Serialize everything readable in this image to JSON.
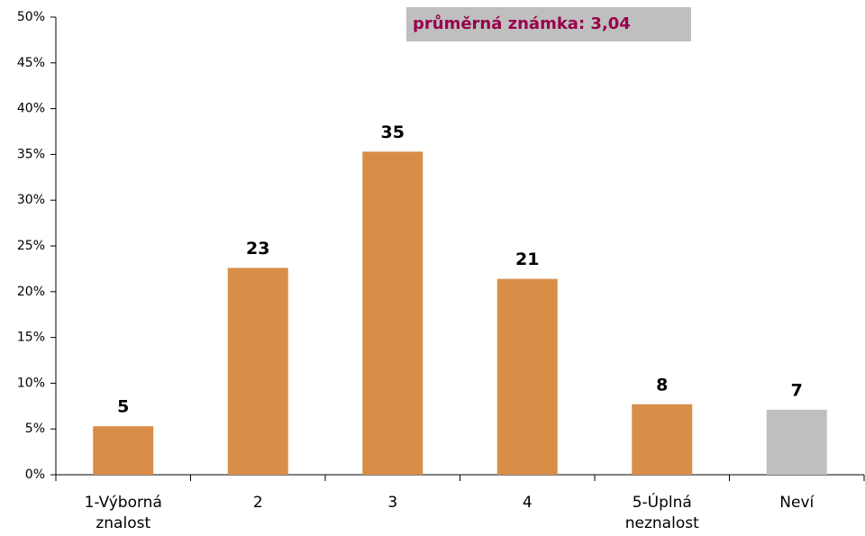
{
  "chart_data": {
    "type": "bar",
    "annotation": "průměrná známka: 3,04",
    "categories": [
      "1-Výborná znalost",
      "2",
      "3",
      "4",
      "5-Úplná neznalost",
      "Neví"
    ],
    "values": [
      5.3,
      22.6,
      35.3,
      21.4,
      7.7,
      7.1
    ],
    "value_labels": [
      "5",
      "23",
      "35",
      "21",
      "8",
      "7"
    ],
    "colors": [
      "#D98E48",
      "#D98E48",
      "#D98E48",
      "#D98E48",
      "#D98E48",
      "#BFBFBF"
    ],
    "ylim": [
      0,
      50
    ],
    "yticks": [
      {
        "value": 0,
        "label": "0%"
      },
      {
        "value": 5,
        "label": "5%"
      },
      {
        "value": 10,
        "label": "10%"
      },
      {
        "value": 15,
        "label": "15%"
      },
      {
        "value": 20,
        "label": "20%"
      },
      {
        "value": 25,
        "label": "25%"
      },
      {
        "value": 30,
        "label": "30%"
      },
      {
        "value": 35,
        "label": "35%"
      },
      {
        "value": 40,
        "label": "40%"
      },
      {
        "value": 45,
        "label": "45%"
      },
      {
        "value": 50,
        "label": "50%"
      }
    ],
    "grid": false
  }
}
